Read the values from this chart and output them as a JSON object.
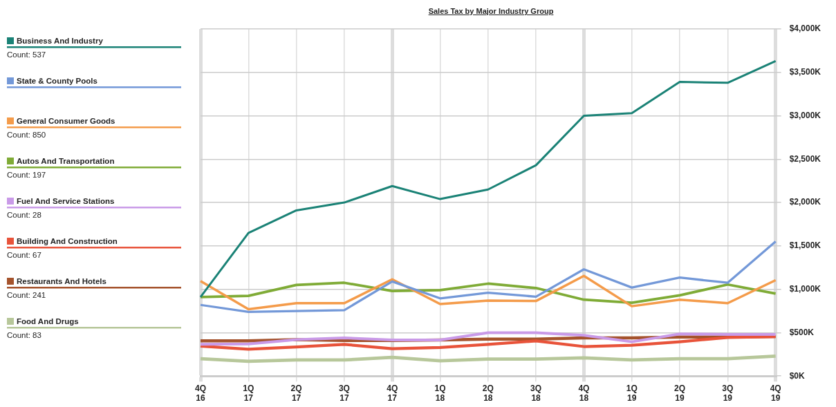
{
  "chart_data": {
    "type": "line",
    "title": "Sales Tax by Major Industry Group",
    "categories": [
      "4Q 16",
      "1Q 17",
      "2Q 17",
      "3Q 17",
      "4Q 17",
      "1Q 18",
      "2Q 18",
      "3Q 18",
      "4Q 18",
      "1Q 19",
      "2Q 19",
      "3Q 19",
      "4Q 19"
    ],
    "series": [
      {
        "name": "Business And Industry",
        "color": "#1a8276",
        "values": [
          910,
          1650,
          1910,
          2000,
          2190,
          2040,
          2150,
          2430,
          3000,
          3030,
          3390,
          3380,
          3630
        ]
      },
      {
        "name": "State & County Pools",
        "color": "#7398d8",
        "values": [
          820,
          740,
          750,
          760,
          1090,
          895,
          960,
          915,
          1230,
          1020,
          1135,
          1075,
          1550
        ]
      },
      {
        "name": "General Consumer Goods",
        "color": "#f49b4a",
        "values": [
          1095,
          770,
          840,
          840,
          1115,
          830,
          870,
          865,
          1155,
          805,
          880,
          840,
          1105
        ]
      },
      {
        "name": "Autos And Transportation",
        "color": "#7fab36",
        "values": [
          910,
          925,
          1050,
          1075,
          980,
          990,
          1065,
          1015,
          880,
          845,
          930,
          1055,
          950
        ]
      },
      {
        "name": "Fuel And Service Stations",
        "color": "#c99ae8",
        "values": [
          365,
          370,
          420,
          440,
          415,
          415,
          500,
          500,
          470,
          395,
          485,
          480,
          480
        ]
      },
      {
        "name": "Building And Construction",
        "color": "#e8533a",
        "values": [
          345,
          310,
          335,
          365,
          315,
          330,
          365,
          405,
          340,
          355,
          395,
          445,
          455
        ]
      },
      {
        "name": "Restaurants And Hotels",
        "color": "#a5532c",
        "values": [
          405,
          405,
          420,
          410,
          410,
          415,
          425,
          425,
          440,
          440,
          450,
          450,
          455
        ]
      },
      {
        "name": "Food And Drugs",
        "color": "#b7c79a",
        "values": [
          200,
          170,
          185,
          185,
          215,
          175,
          195,
          195,
          210,
          185,
          200,
          200,
          230
        ]
      }
    ],
    "annotations": [
      "Count: 537",
      null,
      "Count: 850",
      "Count: 197",
      "Count: 28",
      "Count: 67",
      "Count: 241",
      "Count: 83"
    ],
    "ylim": [
      0,
      4000
    ],
    "yticks": [
      {
        "value": 0,
        "label": "$0K"
      },
      {
        "value": 500,
        "label": "$500K"
      },
      {
        "value": 1000,
        "label": "$1,000K"
      },
      {
        "value": 1500,
        "label": "$1,500K"
      },
      {
        "value": 2000,
        "label": "$2,000K"
      },
      {
        "value": 2500,
        "label": "$2,500K"
      },
      {
        "value": 3000,
        "label": "$3,000K"
      },
      {
        "value": 3500,
        "label": "$3,500K"
      },
      {
        "value": 4000,
        "label": "$4,000K"
      }
    ],
    "grid": true,
    "legend": "left",
    "marker": "none",
    "line_style": "solid"
  }
}
